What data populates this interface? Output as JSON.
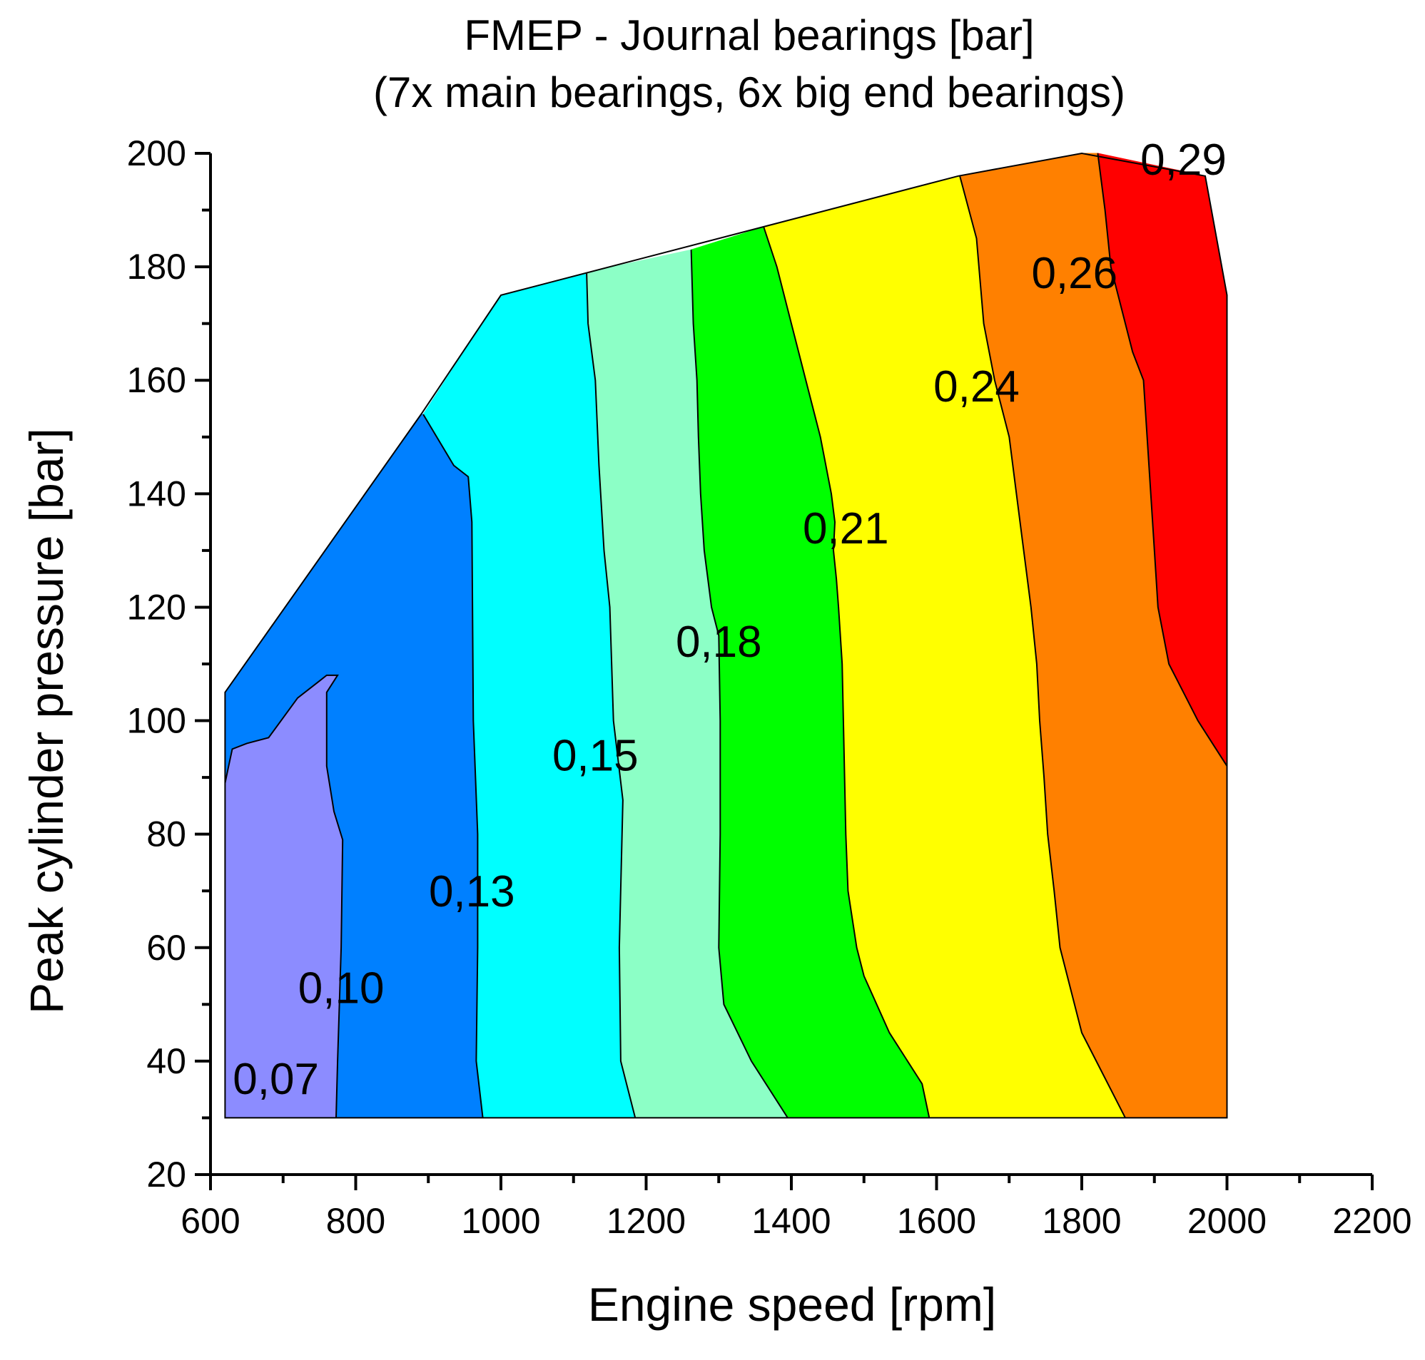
{
  "chart_data": {
    "type": "contour",
    "title": "FMEP - Journal bearings [bar]",
    "subtitle": "(7x main bearings, 6x big end bearings)",
    "xlabel": "Engine speed [rpm]",
    "ylabel": "Peak cylinder pressure [bar]",
    "xlim": [
      600,
      2200
    ],
    "ylim": [
      20,
      200
    ],
    "xticks": [
      600,
      800,
      1000,
      1200,
      1400,
      1600,
      1800,
      2000,
      2200
    ],
    "yticks": [
      20,
      40,
      60,
      80,
      100,
      120,
      140,
      160,
      180,
      200
    ],
    "x_minor_step": 100,
    "y_minor_step": 10,
    "domain_boundary": [
      [
        620,
        30
      ],
      [
        620,
        105
      ],
      [
        890,
        154
      ],
      [
        1000,
        175
      ],
      [
        1630,
        196
      ],
      [
        1800,
        200
      ],
      [
        1970,
        196
      ],
      [
        2000,
        175
      ],
      [
        2000,
        30
      ]
    ],
    "boundaries": [
      [
        [
          620,
          89
        ],
        [
          625,
          92
        ],
        [
          630,
          95
        ],
        [
          650,
          96
        ],
        [
          680,
          97
        ],
        [
          720,
          104
        ],
        [
          750,
          107
        ],
        [
          760,
          108
        ],
        [
          775,
          108
        ],
        [
          760,
          105
        ],
        [
          760,
          92
        ],
        [
          770,
          84
        ],
        [
          782,
          79
        ],
        [
          780,
          60
        ],
        [
          775,
          40
        ],
        [
          773,
          30
        ]
      ],
      [
        [
          893,
          154
        ],
        [
          935,
          145
        ],
        [
          955,
          143
        ],
        [
          960,
          135
        ],
        [
          962,
          100
        ],
        [
          968,
          80
        ],
        [
          968,
          60
        ],
        [
          966,
          40
        ],
        [
          975,
          30
        ]
      ],
      [
        [
          1118,
          179
        ],
        [
          1120,
          170
        ],
        [
          1130,
          160
        ],
        [
          1135,
          145
        ],
        [
          1142,
          130
        ],
        [
          1150,
          120
        ],
        [
          1155,
          100
        ],
        [
          1168,
          86
        ],
        [
          1163,
          60
        ],
        [
          1165,
          40
        ],
        [
          1185,
          30
        ]
      ],
      [
        [
          1262,
          183
        ],
        [
          1265,
          170
        ],
        [
          1270,
          160
        ],
        [
          1272,
          150
        ],
        [
          1275,
          140
        ],
        [
          1280,
          130
        ],
        [
          1290,
          120
        ],
        [
          1300,
          115
        ],
        [
          1302,
          100
        ],
        [
          1302,
          80
        ],
        [
          1300,
          60
        ],
        [
          1307,
          50
        ],
        [
          1345,
          40
        ],
        [
          1395,
          30
        ]
      ],
      [
        [
          1362,
          187
        ],
        [
          1380,
          180
        ],
        [
          1400,
          170
        ],
        [
          1420,
          160
        ],
        [
          1440,
          150
        ],
        [
          1455,
          140
        ],
        [
          1460,
          135
        ],
        [
          1458,
          130
        ],
        [
          1462,
          125
        ],
        [
          1465,
          120
        ],
        [
          1470,
          110
        ],
        [
          1475,
          80
        ],
        [
          1478,
          70
        ],
        [
          1490,
          60
        ],
        [
          1500,
          55
        ],
        [
          1535,
          45
        ],
        [
          1580,
          36
        ],
        [
          1590,
          30
        ]
      ],
      [
        [
          1632,
          196
        ],
        [
          1655,
          185
        ],
        [
          1665,
          170
        ],
        [
          1680,
          160
        ],
        [
          1700,
          150
        ],
        [
          1710,
          140
        ],
        [
          1720,
          130
        ],
        [
          1730,
          120
        ],
        [
          1738,
          110
        ],
        [
          1742,
          100
        ],
        [
          1748,
          90
        ],
        [
          1753,
          80
        ],
        [
          1762,
          70
        ],
        [
          1770,
          60
        ],
        [
          1780,
          55
        ],
        [
          1800,
          45
        ],
        [
          1840,
          35
        ],
        [
          1860,
          30
        ]
      ],
      [
        [
          1822,
          200
        ],
        [
          1832,
          190
        ],
        [
          1840,
          180
        ],
        [
          1850,
          175
        ],
        [
          1870,
          165
        ],
        [
          1885,
          160
        ],
        [
          1890,
          150
        ],
        [
          1895,
          140
        ],
        [
          1900,
          130
        ],
        [
          1905,
          120
        ],
        [
          1920,
          110
        ],
        [
          1940,
          105
        ],
        [
          1960,
          100
        ],
        [
          1985,
          95
        ],
        [
          2000,
          92
        ]
      ]
    ],
    "bands": [
      {
        "value_label": "0,07",
        "color": "#8c8cff"
      },
      {
        "value_label": "0,10",
        "color": "#0080ff"
      },
      {
        "value_label": "0,13",
        "color": "#00ffff"
      },
      {
        "value_label": "0,15",
        "color": "#8cffc6"
      },
      {
        "value_label": "0,18",
        "color": "#00ff00"
      },
      {
        "value_label": "0,21",
        "color": "#ffff00"
      },
      {
        "value_label": "0,24",
        "color": "#ff8000"
      },
      {
        "value_label": "0,26",
        "color": "#ff0000"
      }
    ],
    "contour_labels": [
      {
        "text": "0,07",
        "x": 690,
        "y": 37
      },
      {
        "text": "0,10",
        "x": 780,
        "y": 53
      },
      {
        "text": "0,13",
        "x": 960,
        "y": 70
      },
      {
        "text": "0,15",
        "x": 1130,
        "y": 94
      },
      {
        "text": "0,18",
        "x": 1300,
        "y": 114
      },
      {
        "text": "0,21",
        "x": 1475,
        "y": 134
      },
      {
        "text": "0,24",
        "x": 1655,
        "y": 159
      },
      {
        "text": "0,26",
        "x": 1790,
        "y": 179
      },
      {
        "text": "0,29",
        "x": 1940,
        "y": 199
      }
    ]
  }
}
